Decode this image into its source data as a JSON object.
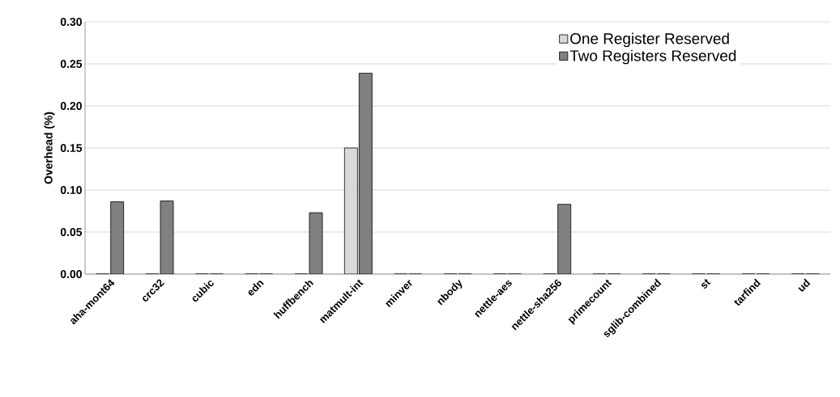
{
  "chart_data": {
    "type": "bar",
    "ylabel": "Overhead (%)",
    "categories": [
      "aha-mont64",
      "crc32",
      "cubic",
      "edn",
      "huffbench",
      "matmult-int",
      "minver",
      "nbody",
      "nettle-aes",
      "nettle-sha256",
      "primecount",
      "sglib-combined",
      "st",
      "tarfind",
      "ud"
    ],
    "series": [
      {
        "name": "One Register Reserved",
        "color": "#d9d9d9",
        "values": [
          0,
          0,
          0,
          0,
          0,
          0.15,
          0,
          0,
          0,
          0,
          0,
          0,
          0,
          0,
          0
        ]
      },
      {
        "name": "Two Registers Reserved",
        "color": "#808080",
        "values": [
          0.086,
          0.087,
          0,
          0,
          0.073,
          0.239,
          0,
          0,
          0,
          0.083,
          0,
          0,
          0,
          0,
          0
        ]
      }
    ],
    "ylim": [
      0,
      0.3
    ],
    "yticks": [
      {
        "value": 0,
        "label": "0.00"
      },
      {
        "value": 0.05,
        "label": "0.05"
      },
      {
        "value": 0.1,
        "label": "0.10"
      },
      {
        "value": 0.15,
        "label": "0.15"
      },
      {
        "value": 0.2,
        "label": "0.20"
      },
      {
        "value": 0.25,
        "label": "0.25"
      },
      {
        "value": 0.3,
        "label": "0.30"
      }
    ],
    "grid": "y",
    "legend": "top right"
  }
}
